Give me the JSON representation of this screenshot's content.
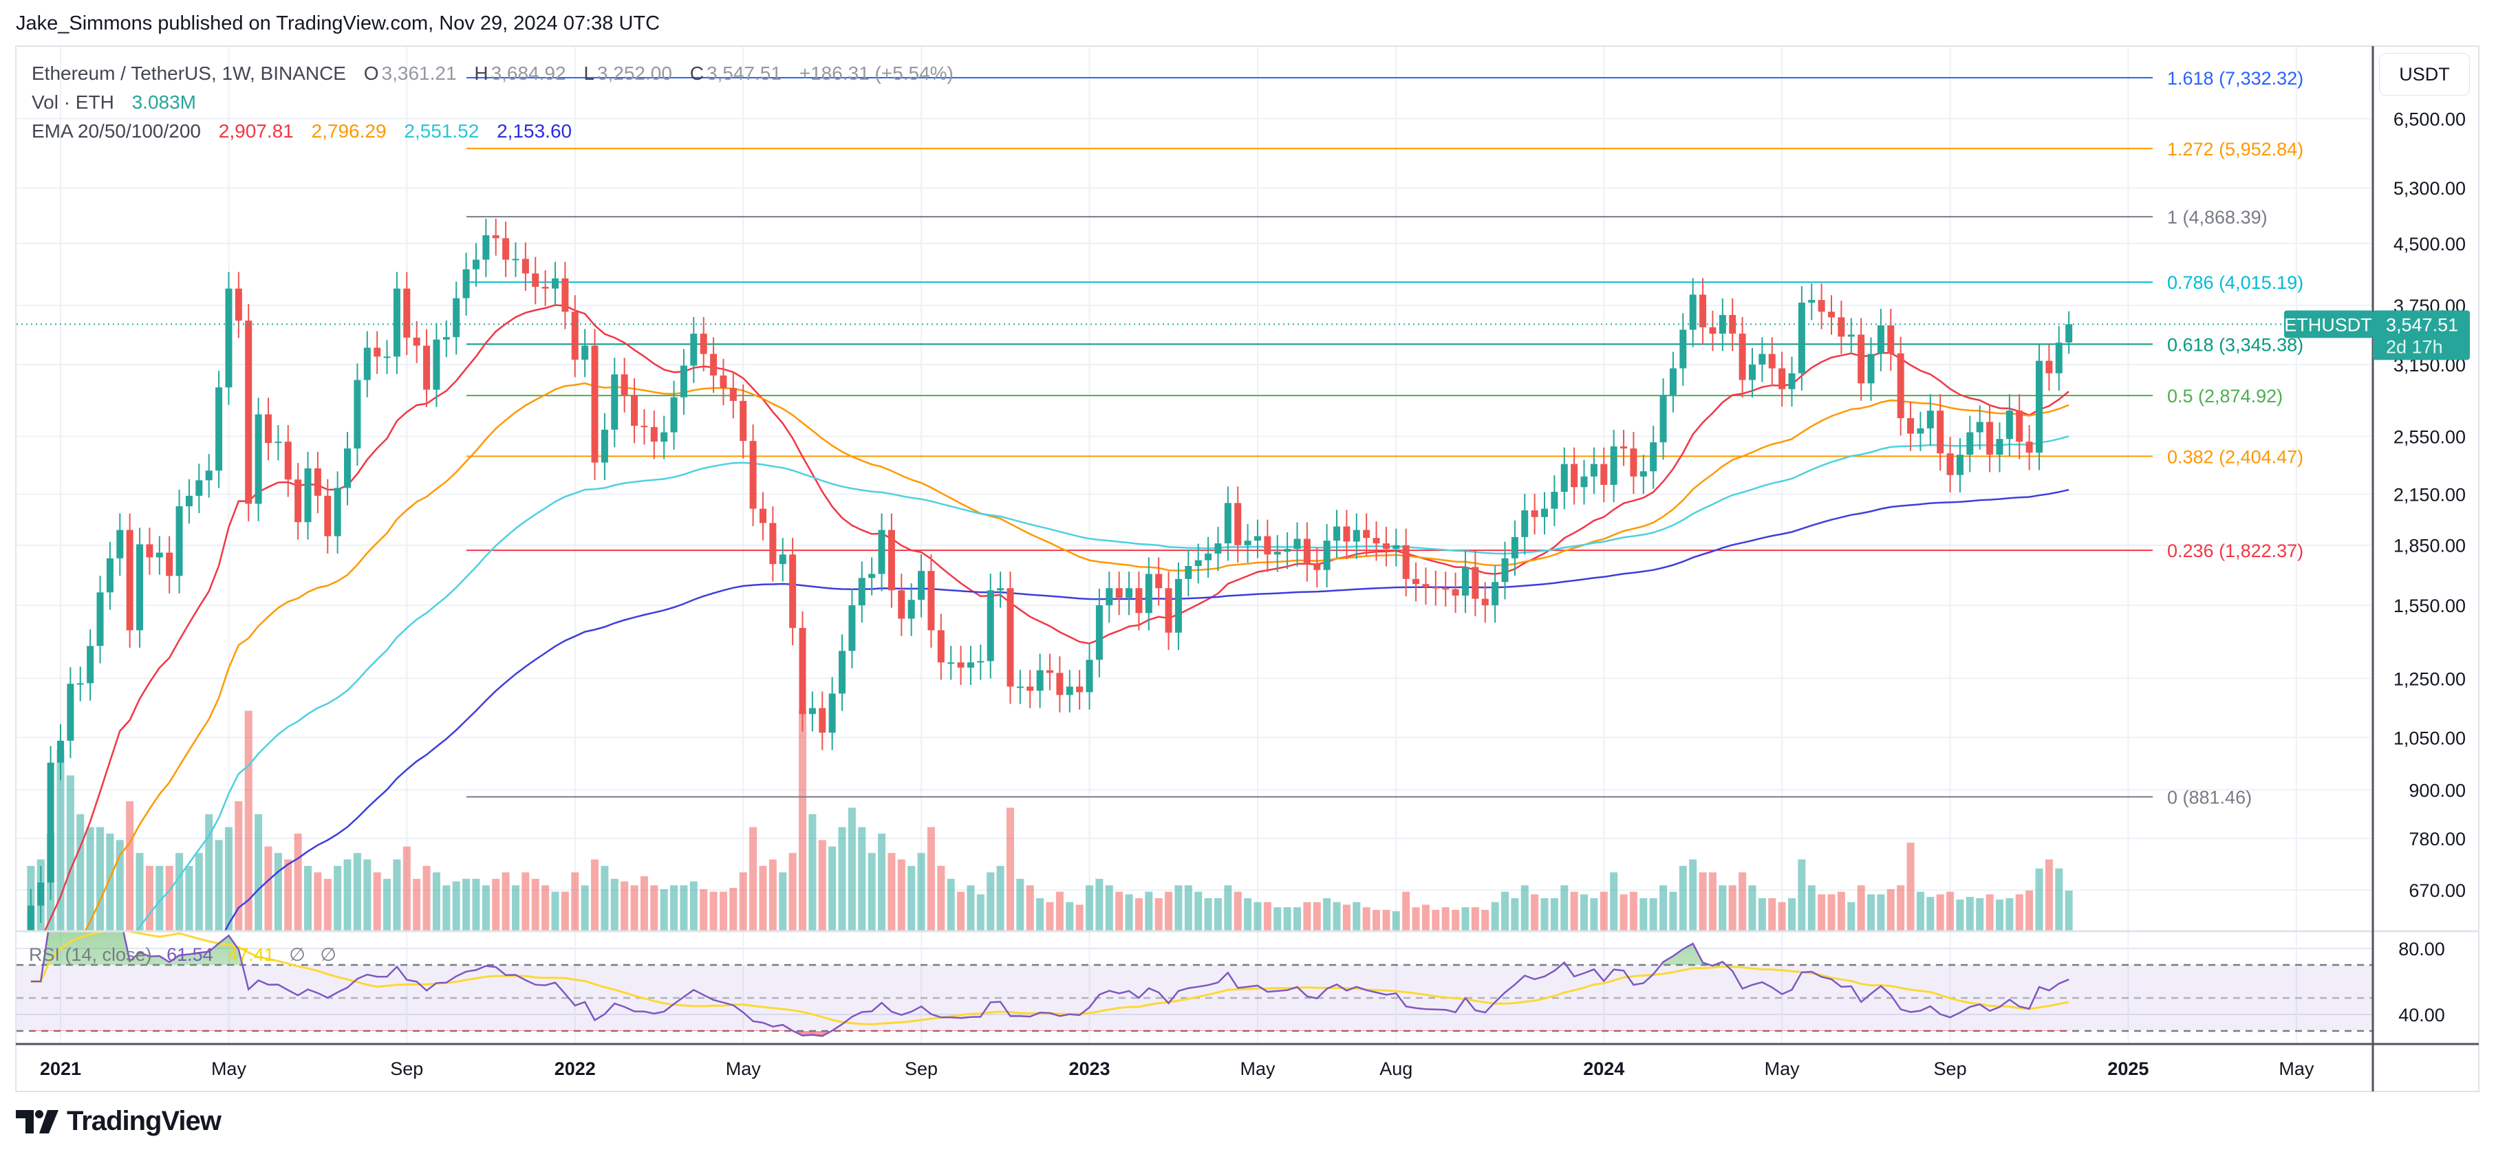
{
  "header": {
    "published": "Jake_Simmons published on TradingView.com, Nov 29, 2024 07:38 UTC"
  },
  "legend": {
    "symbol": "Ethereum / TetherUS, 1W, BINANCE",
    "o_label": "O",
    "o": "3,361.21",
    "h_label": "H",
    "h": "3,684.92",
    "l_label": "L",
    "l": "3,252.00",
    "c_label": "C",
    "c": "3,547.51",
    "change": "+186.31 (+5.54%)",
    "vol_label": "Vol · ETH",
    "vol": "3.083M",
    "ema_label": "EMA 20/50/100/200",
    "ema20": "2,907.81",
    "ema50": "2,796.29",
    "ema100": "2,551.52",
    "ema200": "2,153.60"
  },
  "rsi_legend": {
    "label": "RSI (14, close)",
    "rsi": "61.54",
    "rsi_ma": "47.41",
    "na1": "∅",
    "na2": "∅"
  },
  "price_axis": {
    "currency_button": "USDT",
    "symbol_tag": "ETHUSDT",
    "last_price": "3,547.51",
    "countdown": "2d 17h"
  },
  "footer": {
    "logo_text": "TradingView"
  },
  "colors": {
    "up": "#26a69a",
    "down": "#ef5350",
    "ema20": "#f23645",
    "ema50": "#ff9800",
    "ema100": "#4dd0e1",
    "ema200": "#3d3dde",
    "rsi": "#7e57c2",
    "rsi_ma": "#fdd835"
  },
  "chart_data": {
    "type": "candlestick",
    "title": "Ethereum / TetherUS, 1W, BINANCE",
    "y_scale": "log",
    "ylim": [
      594,
      7600
    ],
    "y_ticks": [
      "6,500.00",
      "5,300.00",
      "4,500.00",
      "3,750.00",
      "3,150.00",
      "2,550.00",
      "2,150.00",
      "1,850.00",
      "1,550.00",
      "1,250.00",
      "1,050.00",
      "900.00",
      "780.00",
      "670.00"
    ],
    "y_tick_values": [
      6500,
      5300,
      4500,
      3750,
      3150,
      2550,
      2150,
      1850,
      1550,
      1250,
      1050,
      900,
      780,
      670
    ],
    "x_ticks": [
      {
        "label": "2021",
        "date": "2021-01-04",
        "bold": true
      },
      {
        "label": "May",
        "date": "2021-05-03"
      },
      {
        "label": "Sep",
        "date": "2021-09-06"
      },
      {
        "label": "2022",
        "date": "2022-01-03",
        "bold": true
      },
      {
        "label": "May",
        "date": "2022-05-02"
      },
      {
        "label": "Sep",
        "date": "2022-09-05"
      },
      {
        "label": "2023",
        "date": "2023-01-02",
        "bold": true
      },
      {
        "label": "May",
        "date": "2023-05-01"
      },
      {
        "label": "Aug",
        "date": "2023-08-07"
      },
      {
        "label": "2024",
        "date": "2024-01-01",
        "bold": true
      },
      {
        "label": "May",
        "date": "2024-05-06"
      },
      {
        "label": "Sep",
        "date": "2024-09-02"
      },
      {
        "label": "2025",
        "date": "2025-01-06",
        "bold": true
      },
      {
        "label": "May",
        "date": "2025-05-05"
      }
    ],
    "grid": true,
    "last_candle": {
      "open": 3361.21,
      "high": 3684.92,
      "low": 3252.0,
      "close": 3547.51
    },
    "fib_levels": [
      {
        "level": "1.618",
        "price": 7332.32,
        "label": "1.618 (7,332.32)",
        "color": "#2962ff"
      },
      {
        "level": "1.272",
        "price": 5952.84,
        "label": "1.272 (5,952.84)",
        "color": "#ff9800"
      },
      {
        "level": "1",
        "price": 4868.39,
        "label": "1 (4,868.39)",
        "color": "#787b86"
      },
      {
        "level": "0.786",
        "price": 4015.19,
        "label": "0.786 (4,015.19)",
        "color": "#00bcd4"
      },
      {
        "level": "0.618",
        "price": 3345.38,
        "label": "0.618 (3,345.38)",
        "color": "#089981"
      },
      {
        "level": "0.5",
        "price": 2874.92,
        "label": "0.5 (2,874.92)",
        "color": "#4caf50"
      },
      {
        "level": "0.382",
        "price": 2404.47,
        "label": "0.382 (2,404.47)",
        "color": "#ff9800"
      },
      {
        "level": "0.236",
        "price": 1822.37,
        "label": "0.236 (1,822.37)",
        "color": "#f23645"
      },
      {
        "level": "0",
        "price": 881.46,
        "label": "0 (881.46)",
        "color": "#787b86"
      }
    ],
    "rsi_ticks": [
      "80.00",
      "40.00"
    ],
    "rsi_tick_values": [
      80,
      40
    ],
    "rsi_bands": [
      70,
      50,
      30
    ],
    "candles_columns": [
      "week",
      "close",
      "volume_M"
    ],
    "candles": [
      [
        "2020-12-14",
        640,
        5.0
      ],
      [
        "2020-12-21",
        685,
        5.5
      ],
      [
        "2020-12-28",
        975,
        7.5
      ],
      [
        "2021-01-04",
        1040,
        14
      ],
      [
        "2021-01-11",
        1230,
        12
      ],
      [
        "2021-01-18",
        1232,
        9
      ],
      [
        "2021-01-25",
        1375,
        8
      ],
      [
        "2021-02-01",
        1610,
        8
      ],
      [
        "2021-02-08",
        1780,
        7.5
      ],
      [
        "2021-02-15",
        1935,
        7
      ],
      [
        "2021-02-22",
        1440,
        10
      ],
      [
        "2021-03-01",
        1855,
        6
      ],
      [
        "2021-03-08",
        1785,
        5
      ],
      [
        "2021-03-15",
        1810,
        5
      ],
      [
        "2021-03-22",
        1690,
        5
      ],
      [
        "2021-03-29",
        2075,
        6
      ],
      [
        "2021-04-05",
        2140,
        5
      ],
      [
        "2021-04-12",
        2240,
        6
      ],
      [
        "2021-04-19",
        2305,
        9
      ],
      [
        "2021-04-26",
        2945,
        7
      ],
      [
        "2021-05-03",
        3940,
        8
      ],
      [
        "2021-05-10",
        3585,
        10
      ],
      [
        "2021-05-17",
        2090,
        17
      ],
      [
        "2021-05-24",
        2720,
        9
      ],
      [
        "2021-05-31",
        2500,
        6.5
      ],
      [
        "2021-06-07",
        2510,
        6
      ],
      [
        "2021-06-14",
        2245,
        5.5
      ],
      [
        "2021-06-21",
        1980,
        7.5
      ],
      [
        "2021-06-28",
        2320,
        5
      ],
      [
        "2021-07-05",
        2140,
        4.5
      ],
      [
        "2021-07-12",
        1900,
        4
      ],
      [
        "2021-07-19",
        2190,
        5
      ],
      [
        "2021-07-26",
        2460,
        5.5
      ],
      [
        "2021-08-02",
        3010,
        6
      ],
      [
        "2021-08-09",
        3310,
        5.5
      ],
      [
        "2021-08-16",
        3225,
        4.5
      ],
      [
        "2021-08-23",
        3225,
        4
      ],
      [
        "2021-08-30",
        3940,
        5.5
      ],
      [
        "2021-09-06",
        3410,
        6.5
      ],
      [
        "2021-09-13",
        3330,
        4
      ],
      [
        "2021-09-20",
        2925,
        5
      ],
      [
        "2021-09-27",
        3390,
        4.5
      ],
      [
        "2021-10-04",
        3415,
        3.5
      ],
      [
        "2021-10-11",
        3830,
        3.8
      ],
      [
        "2021-10-18",
        4170,
        4
      ],
      [
        "2021-10-25",
        4290,
        4
      ],
      [
        "2021-11-01",
        4610,
        3.5
      ],
      [
        "2021-11-08",
        4570,
        4
      ],
      [
        "2021-11-15",
        4290,
        4.5
      ],
      [
        "2021-11-22",
        4300,
        3.5
      ],
      [
        "2021-11-29",
        4120,
        4.5
      ],
      [
        "2021-12-06",
        3960,
        4
      ],
      [
        "2021-12-13",
        3940,
        3.5
      ],
      [
        "2021-12-20",
        4060,
        3
      ],
      [
        "2021-12-27",
        3680,
        3
      ],
      [
        "2022-01-03",
        3195,
        4.5
      ],
      [
        "2022-01-10",
        3330,
        3.5
      ],
      [
        "2022-01-17",
        2360,
        5.5
      ],
      [
        "2022-01-24",
        2600,
        5
      ],
      [
        "2022-01-31",
        3060,
        4
      ],
      [
        "2022-02-07",
        2880,
        3.8
      ],
      [
        "2022-02-14",
        2630,
        3.5
      ],
      [
        "2022-02-21",
        2620,
        4.2
      ],
      [
        "2022-02-28",
        2510,
        3.5
      ],
      [
        "2022-03-07",
        2580,
        3.2
      ],
      [
        "2022-03-14",
        2860,
        3.5
      ],
      [
        "2022-03-21",
        3140,
        3.5
      ],
      [
        "2022-03-28",
        3450,
        3.8
      ],
      [
        "2022-04-04",
        3250,
        3.2
      ],
      [
        "2022-04-11",
        3050,
        3
      ],
      [
        "2022-04-18",
        2940,
        3
      ],
      [
        "2022-04-25",
        2830,
        3.3
      ],
      [
        "2022-05-02",
        2515,
        4.5
      ],
      [
        "2022-05-09",
        2060,
        8
      ],
      [
        "2022-05-16",
        1975,
        5
      ],
      [
        "2022-05-23",
        1750,
        5.5
      ],
      [
        "2022-05-30",
        1800,
        4.5
      ],
      [
        "2022-06-06",
        1450,
        6
      ],
      [
        "2022-06-13",
        1125,
        17
      ],
      [
        "2022-06-20",
        1145,
        9
      ],
      [
        "2022-06-27",
        1065,
        7
      ],
      [
        "2022-07-04",
        1195,
        6.5
      ],
      [
        "2022-07-11",
        1355,
        8
      ],
      [
        "2022-07-18",
        1550,
        9.5
      ],
      [
        "2022-07-25",
        1680,
        8
      ],
      [
        "2022-08-01",
        1700,
        6
      ],
      [
        "2022-08-08",
        1935,
        7.5
      ],
      [
        "2022-08-15",
        1620,
        6
      ],
      [
        "2022-08-22",
        1490,
        5.5
      ],
      [
        "2022-08-29",
        1575,
        5
      ],
      [
        "2022-09-05",
        1715,
        6
      ],
      [
        "2022-09-12",
        1440,
        8
      ],
      [
        "2022-09-19",
        1310,
        5
      ],
      [
        "2022-09-26",
        1310,
        4
      ],
      [
        "2022-10-03",
        1290,
        3
      ],
      [
        "2022-10-10",
        1310,
        3.5
      ],
      [
        "2022-10-17",
        1315,
        2.8
      ],
      [
        "2022-10-24",
        1620,
        4.5
      ],
      [
        "2022-10-31",
        1630,
        5
      ],
      [
        "2022-11-07",
        1220,
        9.5
      ],
      [
        "2022-11-14",
        1220,
        4
      ],
      [
        "2022-11-21",
        1205,
        3.5
      ],
      [
        "2022-11-28",
        1280,
        2.5
      ],
      [
        "2022-12-05",
        1270,
        2.2
      ],
      [
        "2022-12-12",
        1190,
        3
      ],
      [
        "2022-12-19",
        1220,
        2.2
      ],
      [
        "2022-12-26",
        1200,
        2
      ],
      [
        "2023-01-02",
        1320,
        3.5
      ],
      [
        "2023-01-09",
        1550,
        4
      ],
      [
        "2023-01-16",
        1630,
        3.5
      ],
      [
        "2023-01-23",
        1585,
        3
      ],
      [
        "2023-01-30",
        1630,
        2.8
      ],
      [
        "2023-02-06",
        1515,
        2.5
      ],
      [
        "2023-02-13",
        1700,
        3
      ],
      [
        "2023-02-20",
        1630,
        2.5
      ],
      [
        "2023-02-27",
        1430,
        3
      ],
      [
        "2023-03-06",
        1675,
        3.5
      ],
      [
        "2023-03-13",
        1740,
        3.5
      ],
      [
        "2023-03-20",
        1770,
        3
      ],
      [
        "2023-03-27",
        1805,
        2.5
      ],
      [
        "2023-04-03",
        1860,
        2.5
      ],
      [
        "2023-04-10",
        2095,
        3.5
      ],
      [
        "2023-04-17",
        1850,
        3
      ],
      [
        "2023-04-24",
        1875,
        2.5
      ],
      [
        "2023-05-01",
        1900,
        2.2
      ],
      [
        "2023-05-08",
        1800,
        2.2
      ],
      [
        "2023-05-15",
        1815,
        1.8
      ],
      [
        "2023-05-22",
        1830,
        1.8
      ],
      [
        "2023-05-29",
        1885,
        1.8
      ],
      [
        "2023-06-05",
        1750,
        2.2
      ],
      [
        "2023-06-12",
        1720,
        2.2
      ],
      [
        "2023-06-19",
        1875,
        2.5
      ],
      [
        "2023-06-26",
        1955,
        2.2
      ],
      [
        "2023-07-03",
        1870,
        2
      ],
      [
        "2023-07-10",
        1935,
        2.2
      ],
      [
        "2023-07-17",
        1890,
        1.8
      ],
      [
        "2023-07-24",
        1860,
        1.6
      ],
      [
        "2023-07-31",
        1830,
        1.6
      ],
      [
        "2023-08-07",
        1850,
        1.5
      ],
      [
        "2023-08-14",
        1675,
        3
      ],
      [
        "2023-08-21",
        1650,
        1.8
      ],
      [
        "2023-08-28",
        1635,
        2
      ],
      [
        "2023-09-04",
        1630,
        1.6
      ],
      [
        "2023-09-11",
        1625,
        1.8
      ],
      [
        "2023-09-18",
        1595,
        1.6
      ],
      [
        "2023-09-25",
        1735,
        1.8
      ],
      [
        "2023-10-02",
        1580,
        1.8
      ],
      [
        "2023-10-09",
        1550,
        1.6
      ],
      [
        "2023-10-16",
        1660,
        2.2
      ],
      [
        "2023-10-23",
        1780,
        3
      ],
      [
        "2023-10-30",
        1895,
        2.5
      ],
      [
        "2023-11-06",
        2050,
        3.5
      ],
      [
        "2023-11-13",
        2010,
        2.8
      ],
      [
        "2023-11-20",
        2060,
        2.5
      ],
      [
        "2023-11-27",
        2165,
        2.5
      ],
      [
        "2023-12-04",
        2350,
        3.5
      ],
      [
        "2023-12-11",
        2195,
        3
      ],
      [
        "2023-12-18",
        2265,
        2.8
      ],
      [
        "2023-12-25",
        2350,
        2.5
      ],
      [
        "2024-01-01",
        2210,
        3
      ],
      [
        "2024-01-08",
        2475,
        4.5
      ],
      [
        "2024-01-15",
        2460,
        2.8
      ],
      [
        "2024-01-22",
        2265,
        3
      ],
      [
        "2024-01-29",
        2300,
        2.5
      ],
      [
        "2024-02-05",
        2505,
        2.5
      ],
      [
        "2024-02-12",
        2880,
        3.5
      ],
      [
        "2024-02-19",
        3115,
        3
      ],
      [
        "2024-02-26",
        3490,
        5
      ],
      [
        "2024-03-04",
        3870,
        5.5
      ],
      [
        "2024-03-11",
        3515,
        4.5
      ],
      [
        "2024-03-18",
        3450,
        4.5
      ],
      [
        "2024-03-25",
        3645,
        3.5
      ],
      [
        "2024-04-01",
        3450,
        3.5
      ],
      [
        "2024-04-08",
        3010,
        4.5
      ],
      [
        "2024-04-15",
        3150,
        3.5
      ],
      [
        "2024-04-22",
        3250,
        2.5
      ],
      [
        "2024-04-29",
        3115,
        2.5
      ],
      [
        "2024-05-06",
        2930,
        2.2
      ],
      [
        "2024-05-13",
        3070,
        2.5
      ],
      [
        "2024-05-20",
        3780,
        5.5
      ],
      [
        "2024-05-27",
        3810,
        3.5
      ],
      [
        "2024-06-03",
        3680,
        2.8
      ],
      [
        "2024-06-10",
        3620,
        2.8
      ],
      [
        "2024-06-17",
        3420,
        3
      ],
      [
        "2024-06-24",
        3440,
        2.2
      ],
      [
        "2024-07-01",
        2980,
        3.5
      ],
      [
        "2024-07-08",
        3250,
        2.8
      ],
      [
        "2024-07-15",
        3535,
        2.8
      ],
      [
        "2024-07-22",
        3255,
        3.2
      ],
      [
        "2024-07-29",
        2690,
        3.5
      ],
      [
        "2024-08-05",
        2570,
        6.8
      ],
      [
        "2024-08-12",
        2610,
        3
      ],
      [
        "2024-08-19",
        2750,
        2.6
      ],
      [
        "2024-08-26",
        2425,
        2.8
      ],
      [
        "2024-09-02",
        2275,
        3
      ],
      [
        "2024-09-09",
        2415,
        2.4
      ],
      [
        "2024-09-16",
        2580,
        2.6
      ],
      [
        "2024-09-23",
        2660,
        2.5
      ],
      [
        "2024-09-30",
        2415,
        2.8
      ],
      [
        "2024-10-07",
        2530,
        2.4
      ],
      [
        "2024-10-14",
        2750,
        2.5
      ],
      [
        "2024-10-21",
        2510,
        2.8
      ],
      [
        "2024-10-28",
        2430,
        3.1
      ],
      [
        "2024-11-04",
        3185,
        4.8
      ],
      [
        "2024-11-11",
        3070,
        5.5
      ],
      [
        "2024-11-18",
        3360,
        4.8
      ],
      [
        "2024-11-25",
        3547.51,
        3.083
      ]
    ]
  }
}
